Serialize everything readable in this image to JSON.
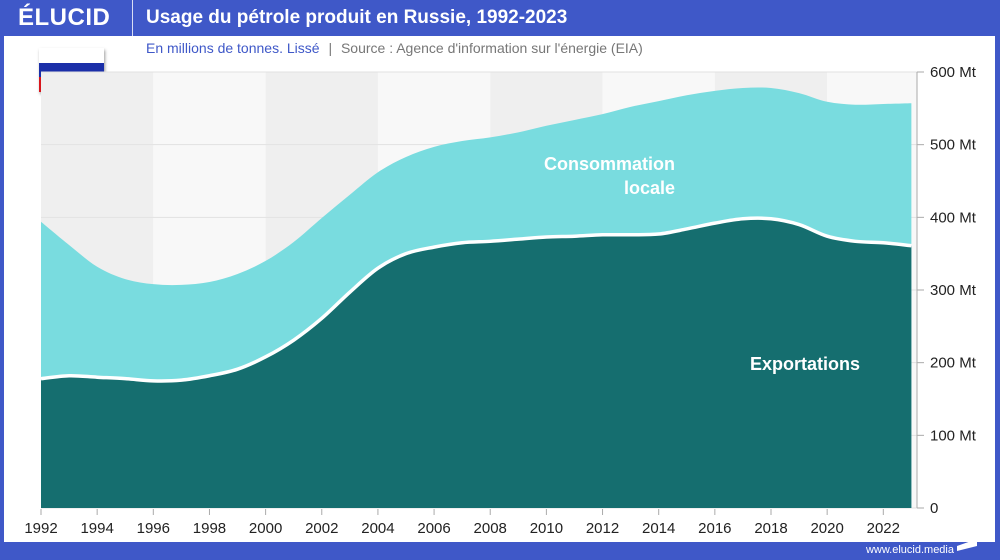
{
  "header": {
    "logo": "ÉLUCID",
    "title": "Usage du pétrole produit en Russie, 1992-2023"
  },
  "subtitle": {
    "unit": "En millions de tonnes. Lissé",
    "separator": "|",
    "source": "Source : Agence d'information sur l'énergie (EIA)"
  },
  "footer": {
    "url": "www.elucid.media"
  },
  "flag": {
    "country": "Russie",
    "colors": [
      "#ffffff",
      "#1b2fa8",
      "#d8161c"
    ]
  },
  "colors": {
    "brand": "#3f58c8",
    "exports": "#156e6f",
    "consumption": "#79dcdf"
  },
  "chart_data": {
    "type": "area",
    "stacked": true,
    "title": "Usage du pétrole produit en Russie, 1992-2023",
    "ylabel": "En millions de tonnes",
    "ylim": [
      0,
      600
    ],
    "yticks": [
      "0",
      "100 Mt",
      "200 Mt",
      "300 Mt",
      "400 Mt",
      "500 Mt",
      "600 Mt"
    ],
    "xticks": [
      "1992",
      "1994",
      "1996",
      "1998",
      "2000",
      "2002",
      "2004",
      "2006",
      "2008",
      "2010",
      "2012",
      "2014",
      "2016",
      "2018",
      "2020",
      "2022"
    ],
    "grid": true,
    "x": [
      1992,
      1993,
      1994,
      1995,
      1996,
      1997,
      1998,
      1999,
      2000,
      2001,
      2002,
      2003,
      2004,
      2005,
      2006,
      2007,
      2008,
      2009,
      2010,
      2011,
      2012,
      2013,
      2014,
      2015,
      2016,
      2017,
      2018,
      2019,
      2020,
      2021,
      2022,
      2023
    ],
    "series": [
      {
        "name": "Exportations",
        "color": "#156e6f",
        "values": [
          178,
          182,
          180,
          178,
          175,
          176,
          182,
          191,
          208,
          231,
          261,
          297,
          330,
          350,
          359,
          365,
          367,
          370,
          373,
          374,
          376,
          376,
          377,
          384,
          392,
          398,
          398,
          390,
          374,
          367,
          365,
          361
        ]
      },
      {
        "name": "Consommation locale",
        "color": "#79dcdf",
        "values": [
          216,
          180,
          152,
          137,
          133,
          131,
          129,
          131,
          132,
          135,
          138,
          134,
          132,
          133,
          138,
          140,
          143,
          147,
          153,
          160,
          166,
          176,
          183,
          184,
          182,
          180,
          180,
          181,
          185,
          188,
          191,
          196
        ]
      }
    ],
    "labels": {
      "consumption": [
        "Consommation",
        "locale"
      ],
      "exports": "Exportations"
    }
  }
}
